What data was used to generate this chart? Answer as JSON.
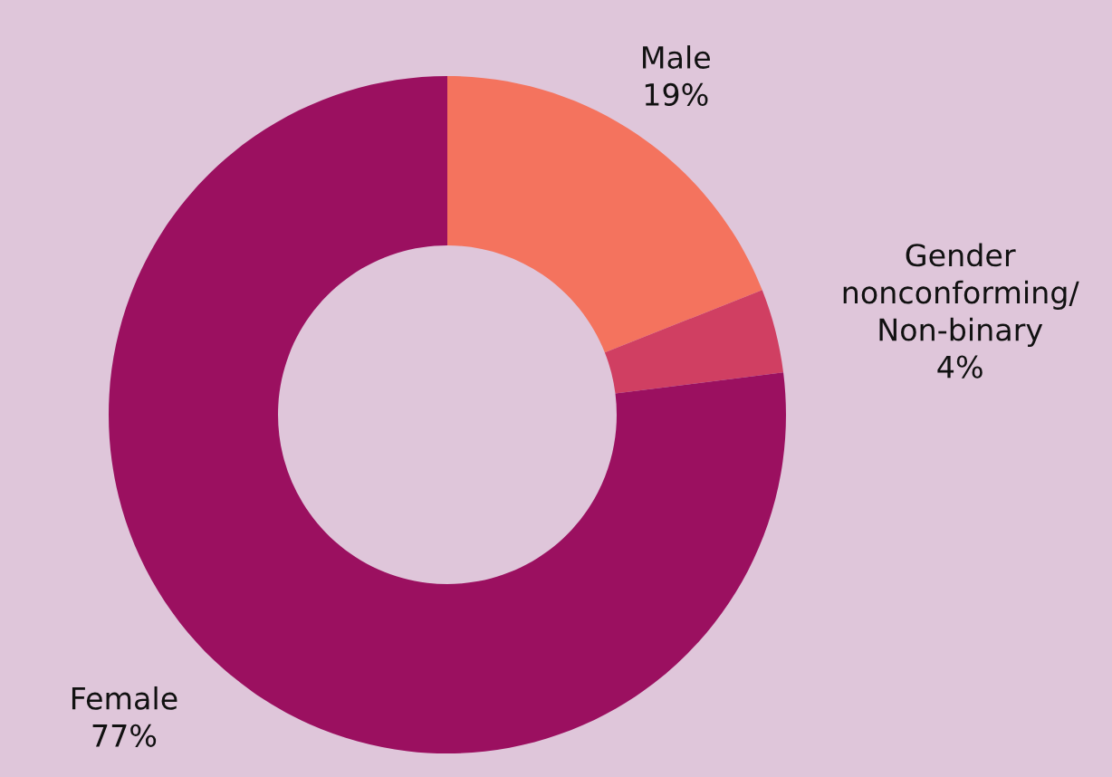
{
  "chart_data": {
    "type": "donut",
    "categories": [
      "Male",
      "Gender\nnonconforming/\nNon-binary",
      "Female"
    ],
    "values": [
      19,
      4,
      77
    ],
    "colors": [
      "#f4735e",
      "#d03f62",
      "#9b1060"
    ],
    "value_labels": [
      "19%",
      "4%",
      "77%"
    ],
    "legend": false
  }
}
